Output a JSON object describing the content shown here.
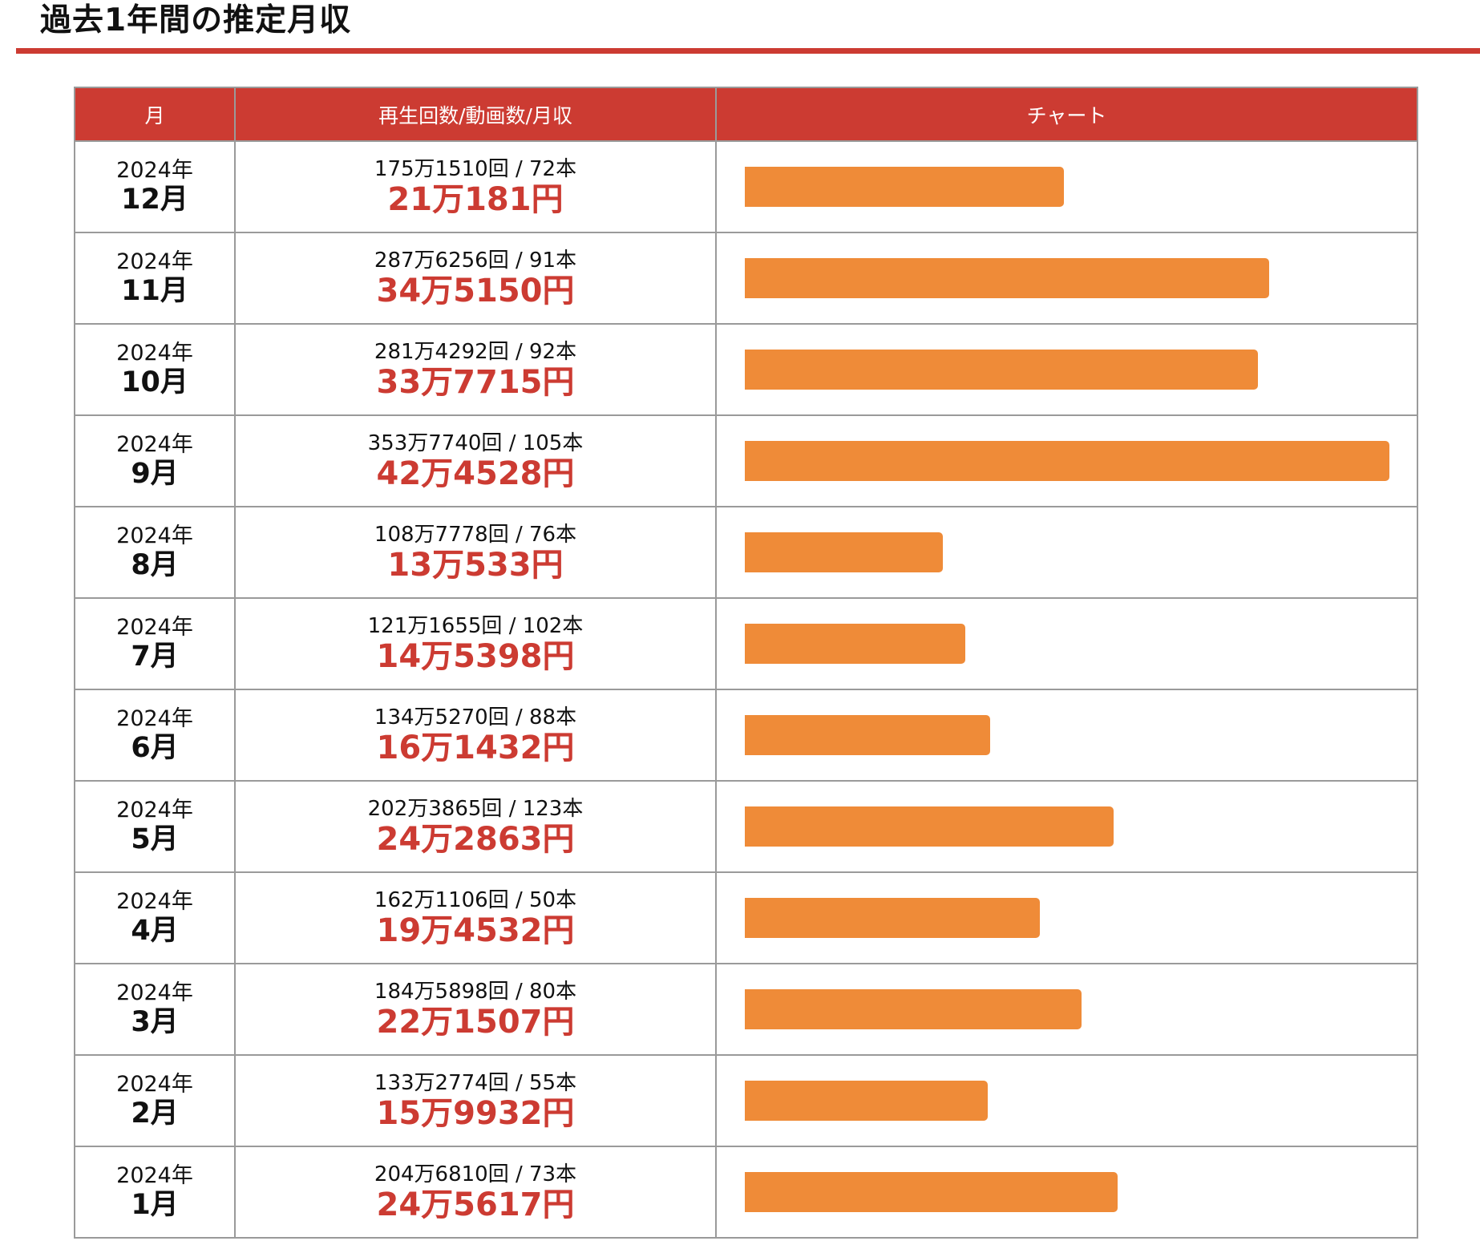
{
  "title": "過去1年間の推定月収",
  "headers": {
    "month": "月",
    "stats": "再生回数/動画数/月収",
    "chart": "チャート"
  },
  "colors": {
    "accent": "#cc3b32",
    "bar": "#ef8b38"
  },
  "rows": [
    {
      "year": "2024年",
      "month": "12月",
      "stats": "175万1510回 / 72本",
      "income": "21万181円",
      "value": 210181
    },
    {
      "year": "2024年",
      "month": "11月",
      "stats": "287万6256回 / 91本",
      "income": "34万5150円",
      "value": 345150
    },
    {
      "year": "2024年",
      "month": "10月",
      "stats": "281万4292回 / 92本",
      "income": "33万7715円",
      "value": 337715
    },
    {
      "year": "2024年",
      "month": "9月",
      "stats": "353万7740回 / 105本",
      "income": "42万4528円",
      "value": 424528
    },
    {
      "year": "2024年",
      "month": "8月",
      "stats": "108万7778回 / 76本",
      "income": "13万533円",
      "value": 130533
    },
    {
      "year": "2024年",
      "month": "7月",
      "stats": "121万1655回 / 102本",
      "income": "14万5398円",
      "value": 145398
    },
    {
      "year": "2024年",
      "month": "6月",
      "stats": "134万5270回 / 88本",
      "income": "16万1432円",
      "value": 161432
    },
    {
      "year": "2024年",
      "month": "5月",
      "stats": "202万3865回 / 123本",
      "income": "24万2863円",
      "value": 242863
    },
    {
      "year": "2024年",
      "month": "4月",
      "stats": "162万1106回 / 50本",
      "income": "19万4532円",
      "value": 194532
    },
    {
      "year": "2024年",
      "month": "3月",
      "stats": "184万5898回 / 80本",
      "income": "22万1507円",
      "value": 221507
    },
    {
      "year": "2024年",
      "month": "2月",
      "stats": "133万2774回 / 55本",
      "income": "15万9932円",
      "value": 159932
    },
    {
      "year": "2024年",
      "month": "1月",
      "stats": "204万6810回 / 73本",
      "income": "24万5617円",
      "value": 245617
    }
  ]
}
